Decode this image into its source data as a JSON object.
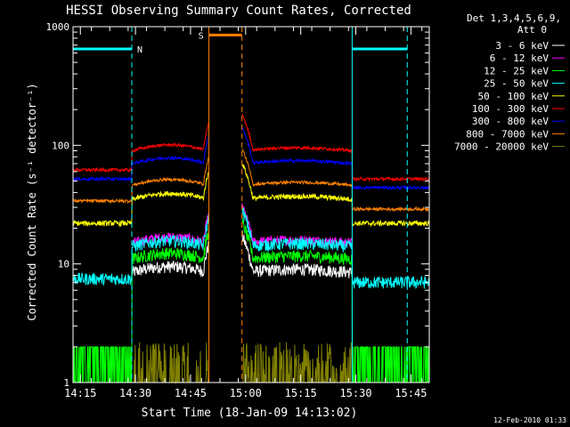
{
  "chart_data": {
    "type": "line",
    "title": "HESSI Observing Summary Count Rates, Corrected",
    "xlabel": "Start Time (18-Jan-09 14:13:02)",
    "ylabel": "Corrected Count Rate (s⁻¹ detector⁻¹)",
    "yscale": "log",
    "ylim": [
      1,
      1000
    ],
    "xlim_minutes_after_1413": [
      0,
      97
    ],
    "xticks": [
      {
        "label": "14:15",
        "t": 2
      },
      {
        "label": "14:30",
        "t": 17
      },
      {
        "label": "14:45",
        "t": 32
      },
      {
        "label": "15:00",
        "t": 47
      },
      {
        "label": "15:15",
        "t": 62
      },
      {
        "label": "15:30",
        "t": 77
      },
      {
        "label": "15:45",
        "t": 92
      }
    ],
    "yticks": [
      {
        "label": "1",
        "v": 1
      },
      {
        "label": "10",
        "v": 10
      },
      {
        "label": "100",
        "v": 100
      },
      {
        "label": "1000",
        "v": 1000
      }
    ],
    "legend_title": "Det 1,3,4,5,6,9,",
    "legend_subtitle": "Att 0",
    "legend_position": "right",
    "timestamp": "12-Feb-2010 01:33",
    "flags": [
      {
        "label": "N",
        "color": "#00ffff",
        "t_start": 0,
        "t_end": 16,
        "level": 650,
        "style": "bar"
      },
      {
        "label": "S",
        "color": "#ff8000",
        "t_start": 37,
        "t_end": 46,
        "level": 850,
        "style": "bar"
      },
      {
        "label": "",
        "color": "#00ffff",
        "t_start": 76,
        "t_end": 91,
        "level": 650,
        "style": "bar"
      }
    ],
    "night_boundaries": [
      {
        "t": 16,
        "color": "#00ffff",
        "style": "dashed"
      },
      {
        "t": 76,
        "color": "#00ffff",
        "style": "solid"
      },
      {
        "t": 91,
        "color": "#00ffff",
        "style": "dashed"
      }
    ],
    "saa_boundaries": [
      {
        "t": 37,
        "color": "#ff8000",
        "style": "solid"
      },
      {
        "t": 46,
        "color": "#ff8000",
        "style": "dashed"
      }
    ],
    "series": [
      {
        "name": "3 - 6 keV",
        "color": "#ffffff",
        "pre": 0,
        "day": 8.5,
        "post": 0,
        "noise": 0.12
      },
      {
        "name": "6 - 12 keV",
        "color": "#ff00ff",
        "pre": 0,
        "day": 15,
        "post": 0,
        "noise": 0.1
      },
      {
        "name": "12 - 25 keV",
        "color": "#00ff00",
        "pre": 1.5,
        "day": 11,
        "post": 1.5,
        "noise": 0.12
      },
      {
        "name": "25 - 50 keV",
        "color": "#00ffff",
        "pre": 7.5,
        "day": 14,
        "post": 7,
        "noise": 0.12
      },
      {
        "name": "50 - 100 keV",
        "color": "#ffff00",
        "pre": 22,
        "day": 35,
        "post": 22,
        "noise": 0.05
      },
      {
        "name": "100 - 300 keV",
        "color": "#ff0000",
        "pre": 62,
        "day": 90,
        "post": 52,
        "noise": 0.03
      },
      {
        "name": "300 - 800 keV",
        "color": "#0000ff",
        "pre": 52,
        "day": 70,
        "post": 44,
        "noise": 0.03
      },
      {
        "name": "800 - 7000 keV",
        "color": "#ff8000",
        "pre": 34,
        "day": 46,
        "post": 29,
        "noise": 0.03
      },
      {
        "name": "7000 - 20000 keV",
        "color": "#808000",
        "pre": 1,
        "day": 1,
        "post": 1,
        "noise": 0.3
      }
    ],
    "data_gaps_minutes": [
      [
        37,
        46
      ]
    ],
    "grid": false
  }
}
